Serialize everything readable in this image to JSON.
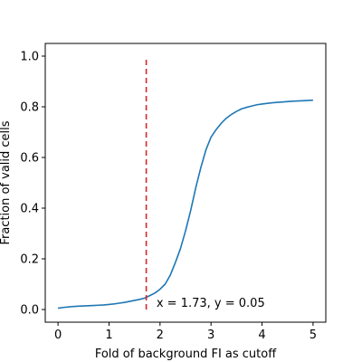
{
  "chart_data": {
    "type": "line",
    "title": "",
    "xlabel": "Fold of background FI as cutoff",
    "ylabel": "Fraction of valid cells",
    "xlim": [
      -0.25,
      5.25
    ],
    "ylim": [
      -0.05,
      1.05
    ],
    "x_ticks": [
      0,
      1,
      2,
      3,
      4,
      5
    ],
    "y_ticks": [
      0.0,
      0.2,
      0.4,
      0.6,
      0.8,
      1.0
    ],
    "x_tick_labels": [
      "0",
      "1",
      "2",
      "3",
      "4",
      "5"
    ],
    "y_tick_labels": [
      "0.0",
      "0.2",
      "0.4",
      "0.6",
      "0.8",
      "1.0"
    ],
    "grid": false,
    "series": [
      {
        "color": "#1f77b4",
        "x": [
          0.0,
          0.1,
          0.2,
          0.3,
          0.4,
          0.5,
          0.6,
          0.7,
          0.8,
          0.9,
          1.0,
          1.1,
          1.2,
          1.3,
          1.4,
          1.5,
          1.6,
          1.7,
          1.8,
          1.9,
          2.0,
          2.1,
          2.2,
          2.3,
          2.4,
          2.5,
          2.6,
          2.7,
          2.8,
          2.9,
          3.0,
          3.1,
          3.2,
          3.3,
          3.4,
          3.5,
          3.6,
          3.7,
          3.8,
          3.9,
          4.0,
          4.2,
          4.4,
          4.6,
          4.8,
          5.0
        ],
        "y": [
          0.005,
          0.008,
          0.01,
          0.012,
          0.013,
          0.014,
          0.015,
          0.016,
          0.017,
          0.018,
          0.02,
          0.022,
          0.025,
          0.028,
          0.032,
          0.036,
          0.04,
          0.045,
          0.055,
          0.065,
          0.08,
          0.1,
          0.135,
          0.185,
          0.24,
          0.31,
          0.39,
          0.48,
          0.56,
          0.63,
          0.68,
          0.71,
          0.735,
          0.755,
          0.77,
          0.782,
          0.792,
          0.798,
          0.803,
          0.808,
          0.811,
          0.816,
          0.819,
          0.822,
          0.824,
          0.826
        ]
      }
    ],
    "vline": {
      "x": 1.73,
      "ymin": 0.0,
      "ymax": 1.0,
      "color": "#d62728",
      "style": "dashed"
    },
    "annotation": {
      "text": "x = 1.73, y = 0.05",
      "x": 1.93,
      "y": 0.01
    }
  }
}
